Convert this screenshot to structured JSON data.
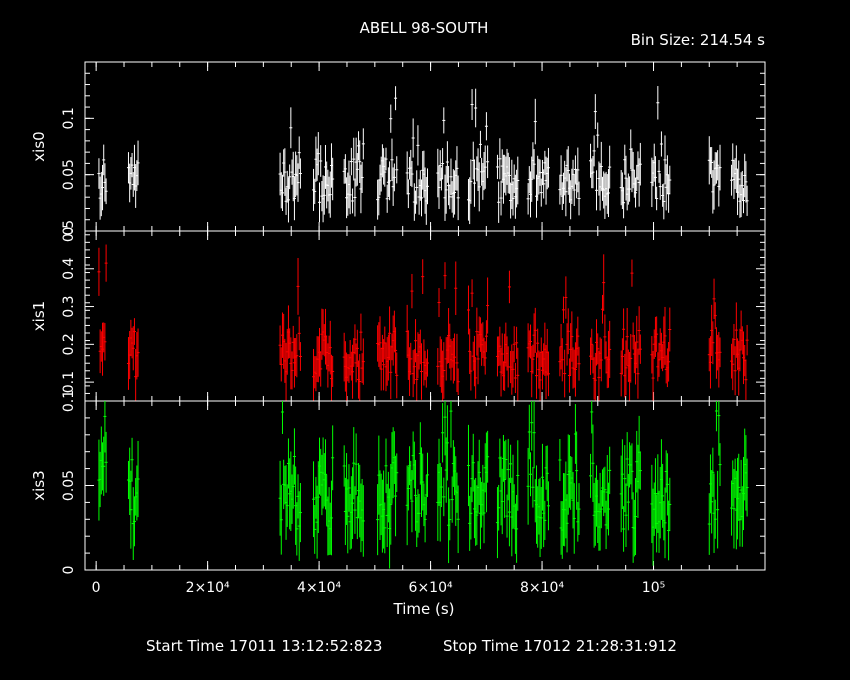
{
  "title": "ABELL 98-SOUTH",
  "bin_size": "Bin Size: 214.54 s",
  "footer": {
    "start": "Start Time 17011 13:12:52:823",
    "stop": "Stop Time 17012 21:28:31:912"
  },
  "colors": {
    "xis0": "#ffffff",
    "xis1": "#ff0000",
    "xis3": "#00ff00",
    "frame": "#ffffff",
    "background": "#000000"
  },
  "chart_data": {
    "type": "scatter",
    "xlabel": "Time (s)",
    "xlim": [
      -2000,
      120000
    ],
    "xticks": [
      {
        "value": 0,
        "label": "0"
      },
      {
        "value": 20000,
        "label": "2×10⁴"
      },
      {
        "value": 40000,
        "label": "4×10⁴"
      },
      {
        "value": 60000,
        "label": "6×10⁴"
      },
      {
        "value": 80000,
        "label": "8×10⁴"
      },
      {
        "value": 100000,
        "label": "10⁵"
      }
    ],
    "segments": [
      [
        500,
        2000
      ],
      [
        5800,
        7700
      ],
      [
        33000,
        36800
      ],
      [
        39000,
        42500
      ],
      [
        44500,
        48000
      ],
      [
        50500,
        54000
      ],
      [
        55800,
        59500
      ],
      [
        61300,
        65000
      ],
      [
        66800,
        70300
      ],
      [
        72000,
        75800
      ],
      [
        77500,
        81300
      ],
      [
        83200,
        86700
      ],
      [
        88700,
        92200
      ],
      [
        94200,
        97700
      ],
      [
        99700,
        103000
      ],
      [
        110000,
        112000
      ],
      [
        114000,
        117000
      ]
    ],
    "panels": [
      {
        "name": "xis0",
        "ylabel": "xis0",
        "ylim": [
          0,
          0.15
        ],
        "yticks": [
          {
            "value": 0,
            "label": "0"
          },
          {
            "value": 0.05,
            "label": "0.05"
          },
          {
            "value": 0.1,
            "label": "0.1"
          }
        ],
        "base": 0.045,
        "spread": 0.02,
        "high": 0.12,
        "seed": 11
      },
      {
        "name": "xis1",
        "ylabel": "xis1",
        "ylim": [
          0.05,
          0.5
        ],
        "yticks": [
          {
            "value": 0.1,
            "label": "0.1"
          },
          {
            "value": 0.2,
            "label": "0.2"
          },
          {
            "value": 0.3,
            "label": "0.3"
          },
          {
            "value": 0.4,
            "label": "0.4"
          },
          {
            "value": 0.5,
            "label": "0.5"
          }
        ],
        "base": 0.17,
        "spread": 0.07,
        "high": 0.42,
        "seed": 23
      },
      {
        "name": "xis3",
        "ylabel": "xis3",
        "ylim": [
          0,
          0.1
        ],
        "yticks": [
          {
            "value": 0,
            "label": "0"
          },
          {
            "value": 0.05,
            "label": "0.05"
          },
          {
            "value": 0.1,
            "label": "0.1"
          }
        ],
        "base": 0.045,
        "spread": 0.022,
        "high": 0.095,
        "seed": 37
      }
    ]
  }
}
